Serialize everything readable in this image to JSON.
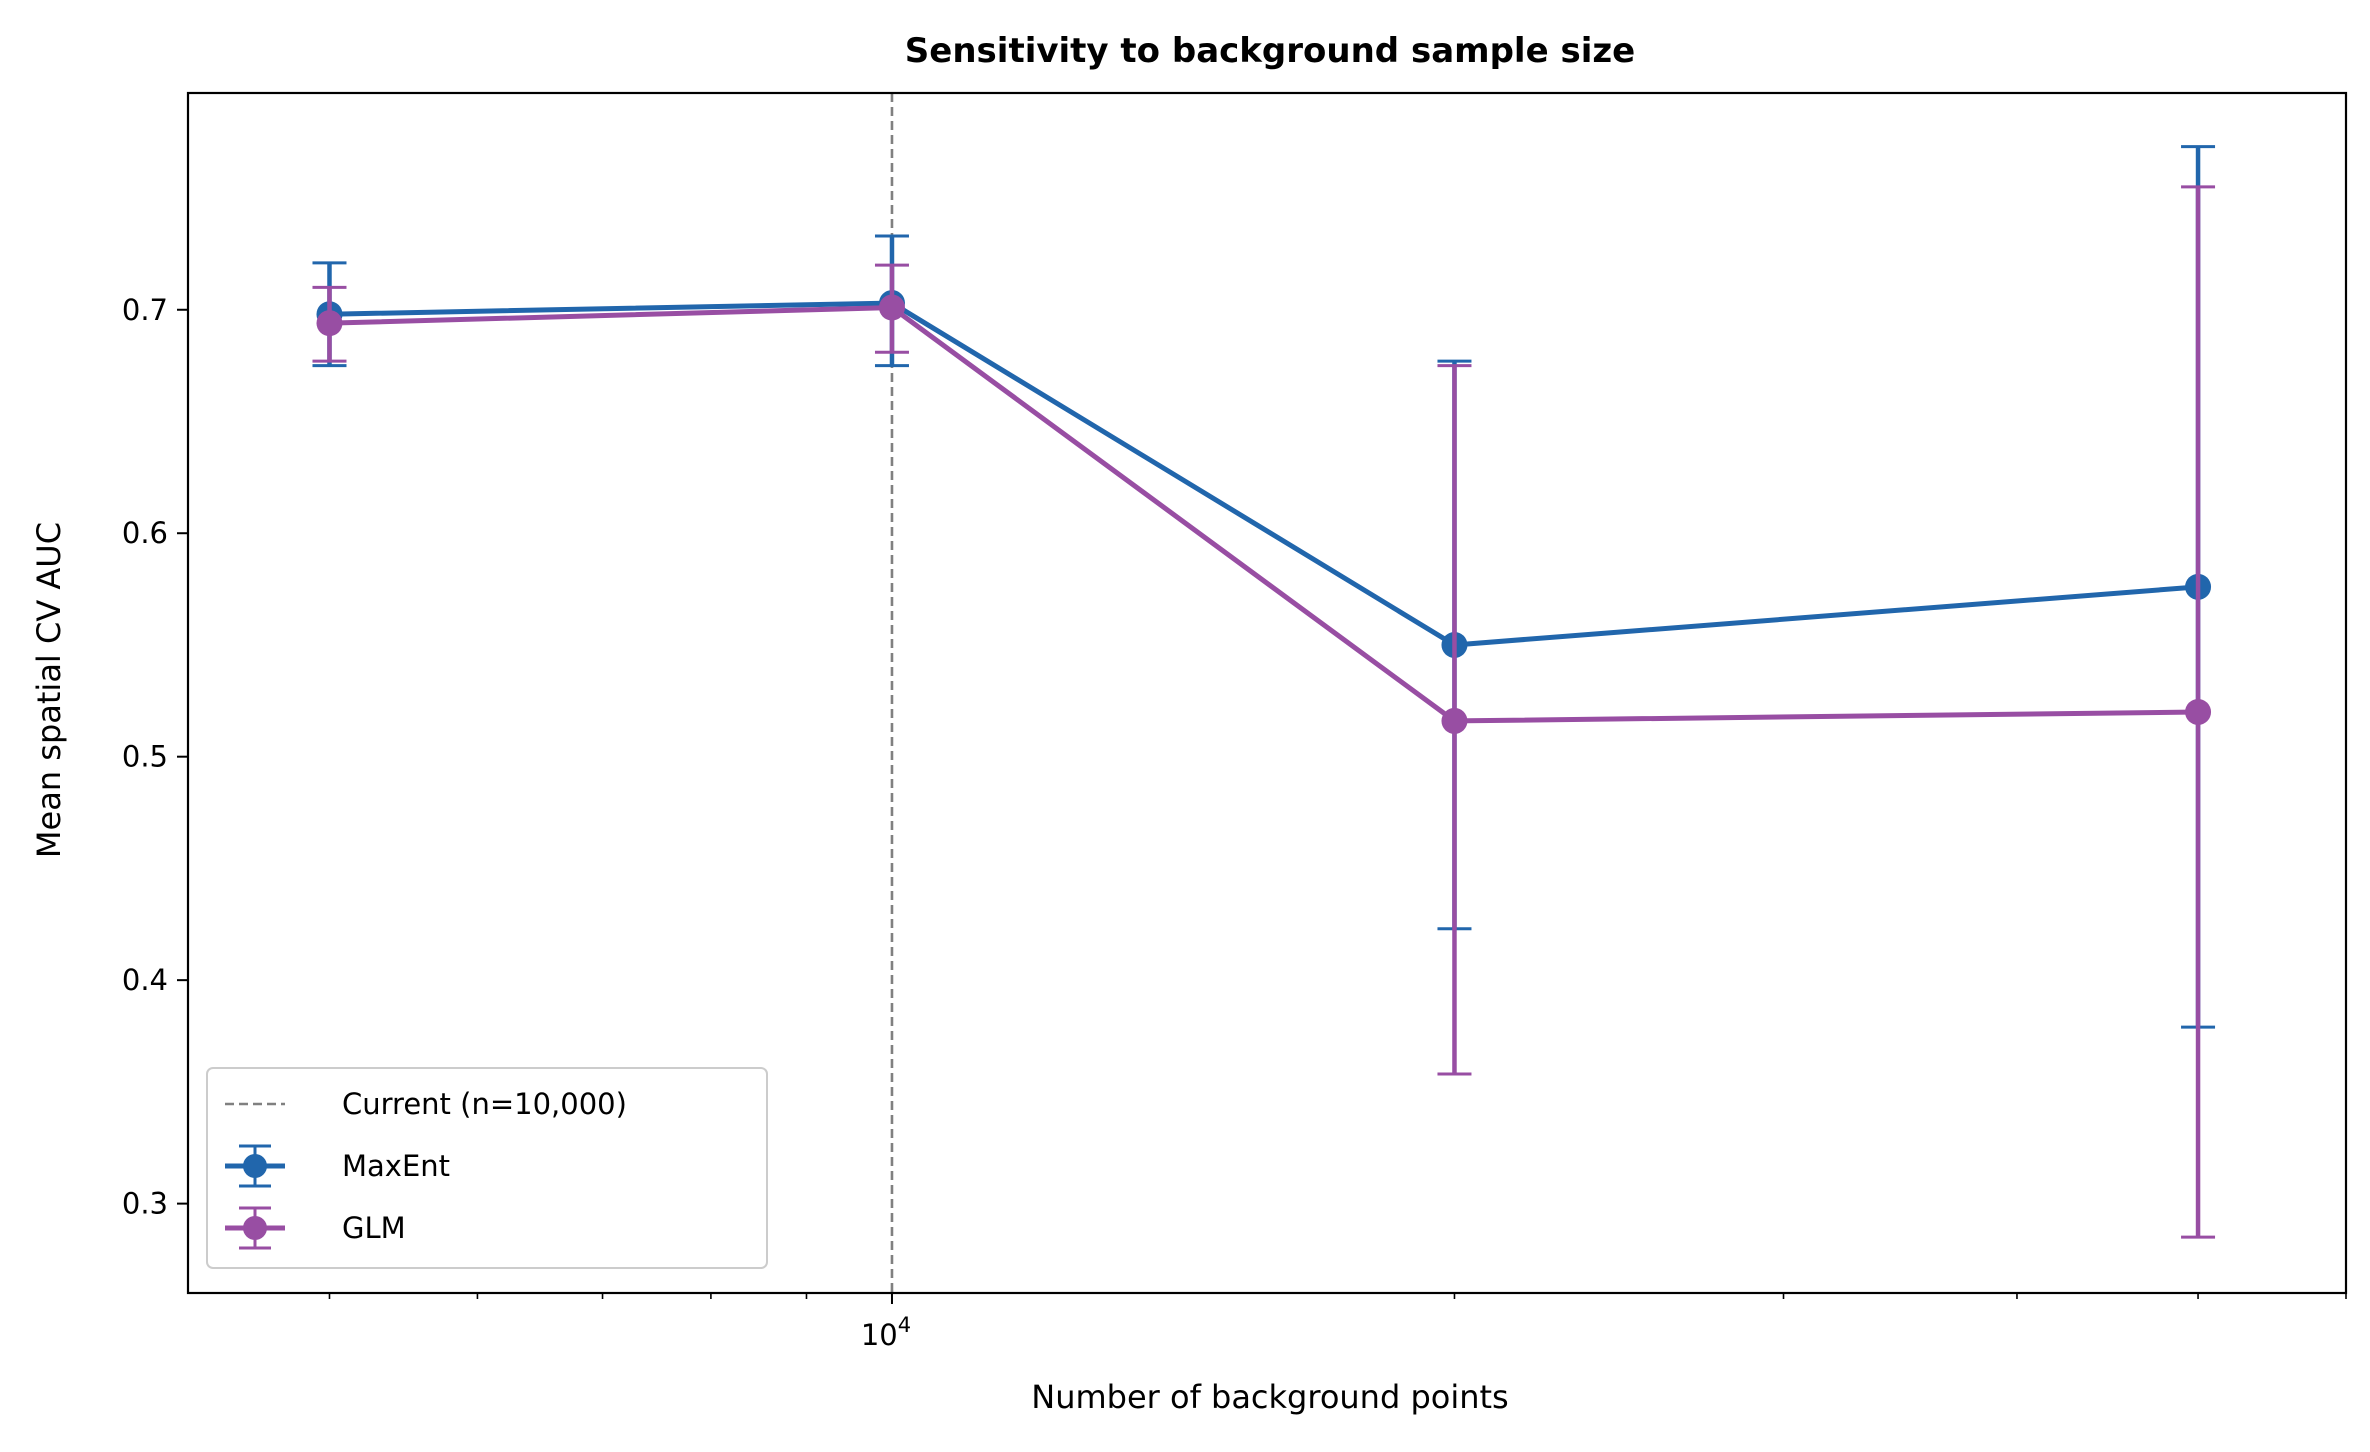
{
  "chart_data": {
    "type": "line",
    "title": "Sensitivity to background sample size",
    "xlabel": "Number of background points",
    "ylabel": "Mean spatial CV AUC",
    "x_scale": "log",
    "x": [
      5000,
      10000,
      20000,
      50000
    ],
    "xlim": [
      4200,
      60000
    ],
    "ylim": [
      0.26,
      0.797
    ],
    "x_ticks": [
      {
        "value": 10000,
        "base": "10",
        "exp": "4"
      }
    ],
    "y_ticks": [
      0.3,
      0.4,
      0.5,
      0.6,
      0.7
    ],
    "y_tick_labels": [
      "0.3",
      "0.4",
      "0.5",
      "0.6",
      "0.7"
    ],
    "grid": false,
    "legend_position": "lower-left",
    "reference_line": {
      "x": 10000,
      "label": "Current (n=10,000)",
      "color": "#808080",
      "style": "dashed"
    },
    "series": [
      {
        "name": "MaxEnt",
        "color": "#2166ac",
        "values": [
          0.698,
          0.703,
          0.55,
          0.576
        ],
        "err_low": [
          0.675,
          0.675,
          0.423,
          0.379
        ],
        "err_high": [
          0.721,
          0.733,
          0.677,
          0.773
        ]
      },
      {
        "name": "GLM",
        "color": "#984ea3",
        "values": [
          0.694,
          0.701,
          0.516,
          0.52
        ],
        "err_low": [
          0.677,
          0.681,
          0.358,
          0.285
        ],
        "err_high": [
          0.71,
          0.72,
          0.675,
          0.755
        ]
      }
    ]
  }
}
